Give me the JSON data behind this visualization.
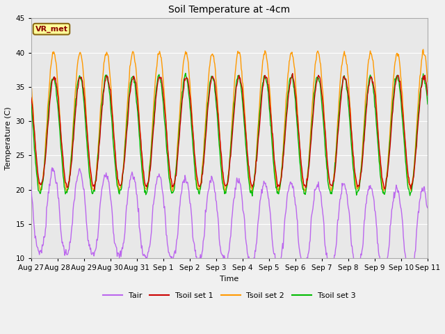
{
  "title": "Soil Temperature at -4cm",
  "xlabel": "Time",
  "ylabel": "Temperature (C)",
  "ylim": [
    10,
    45
  ],
  "yticks": [
    10,
    15,
    20,
    25,
    30,
    35,
    40,
    45
  ],
  "fig_bg_color": "#f0f0f0",
  "plot_bg_color": "#e8e8e8",
  "grid_color": "white",
  "line_colors": {
    "Tair": "#bb66ee",
    "Tsoil set 1": "#cc0000",
    "Tsoil set 2": "#ff9900",
    "Tsoil set 3": "#00bb00"
  },
  "annotation_text": "VR_met",
  "annotation_color": "#8b0000",
  "annotation_bg": "#ffff99",
  "annotation_border": "#8b6914",
  "x_tick_labels": [
    "Aug 27",
    "Aug 28",
    "Aug 29",
    "Aug 30",
    "Aug 31",
    "Sep 1",
    "Sep 2",
    "Sep 3",
    "Sep 4",
    "Sep 5",
    "Sep 6",
    "Sep 7",
    "Sep 8",
    "Sep 9",
    "Sep 10",
    "Sep 11"
  ],
  "x_tick_positions": [
    0,
    1,
    2,
    3,
    4,
    5,
    6,
    7,
    8,
    9,
    10,
    11,
    12,
    13,
    14,
    15
  ]
}
